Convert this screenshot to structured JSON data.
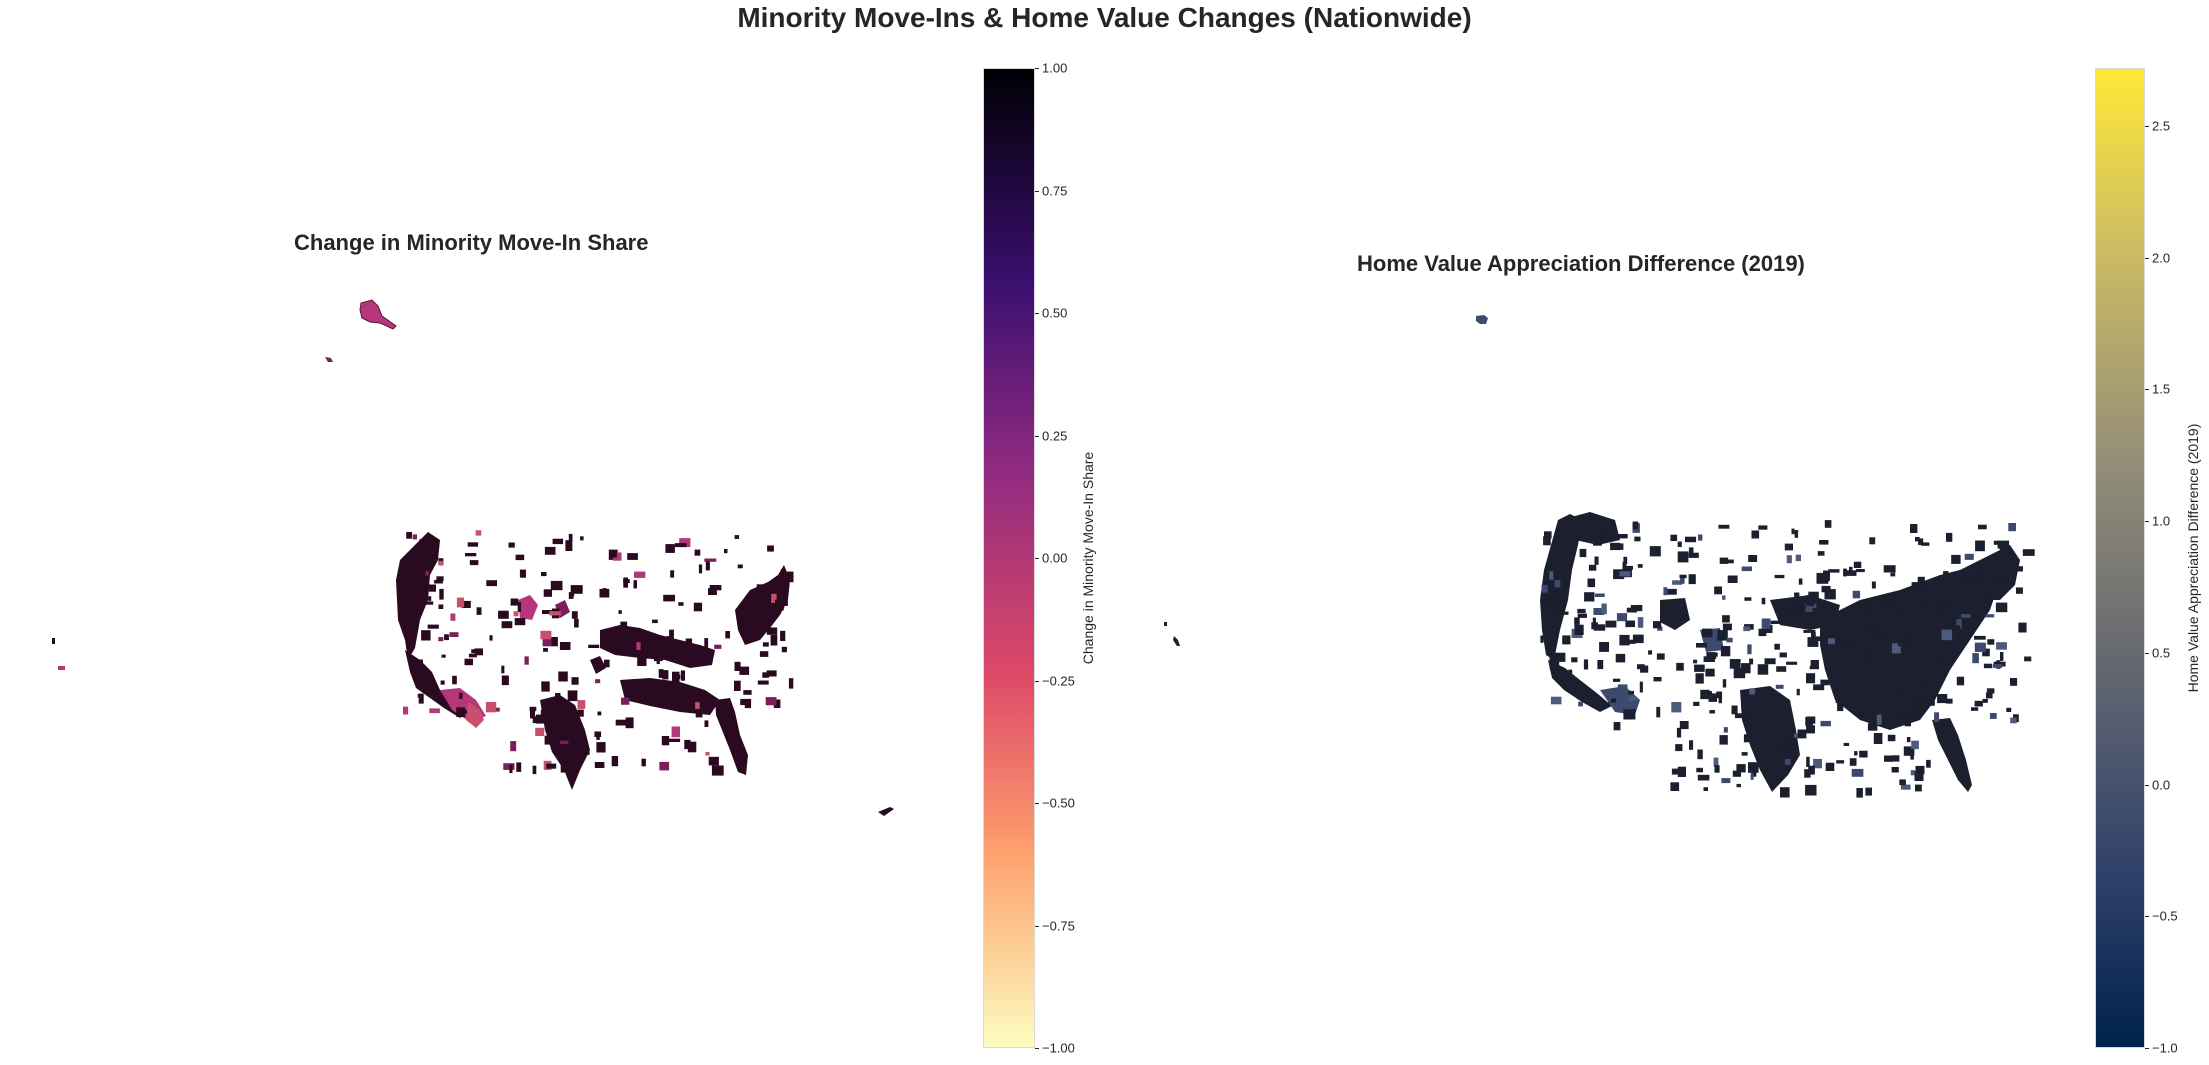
{
  "figure_title": "Minority Move-Ins & Home Value Changes (Nationwide)",
  "panels": [
    {
      "title": "Change in Minority Move-In Share",
      "colorbar": {
        "label": "Change in Minority Move-In Share",
        "colormap": "magma_r",
        "range": [
          -1.0,
          1.0
        ],
        "ticks": [
          "1.00",
          "0.75",
          "0.50",
          "0.25",
          "0.00",
          "−0.25",
          "−0.50",
          "−0.75",
          "−1.00"
        ],
        "colors": [
          "#000004",
          "#3b0f70",
          "#8c2981",
          "#de4968",
          "#fe9f6d",
          "#fcfdbf"
        ]
      },
      "dominant_fill": "#2a0a20",
      "accent_fills": [
        "#b5367a",
        "#7a1f5e",
        "#c8506d"
      ]
    },
    {
      "title": "Home Value Appreciation Difference (2019)",
      "colorbar": {
        "label": "Home Value Appreciation Difference (2019)",
        "colormap": "cividis",
        "range": [
          -1.0,
          2.72
        ],
        "ticks": [
          "2.5",
          "2.0",
          "1.5",
          "1.0",
          "0.5",
          "0.0",
          "−0.5",
          "−1.0"
        ],
        "colors": [
          "#00224e",
          "#35456c",
          "#666970",
          "#948e77",
          "#c8b866",
          "#fee838"
        ]
      },
      "dominant_fill": "#1c1f2e",
      "accent_fills": [
        "#3c4a6e",
        "#4d5a7c"
      ]
    }
  ]
}
